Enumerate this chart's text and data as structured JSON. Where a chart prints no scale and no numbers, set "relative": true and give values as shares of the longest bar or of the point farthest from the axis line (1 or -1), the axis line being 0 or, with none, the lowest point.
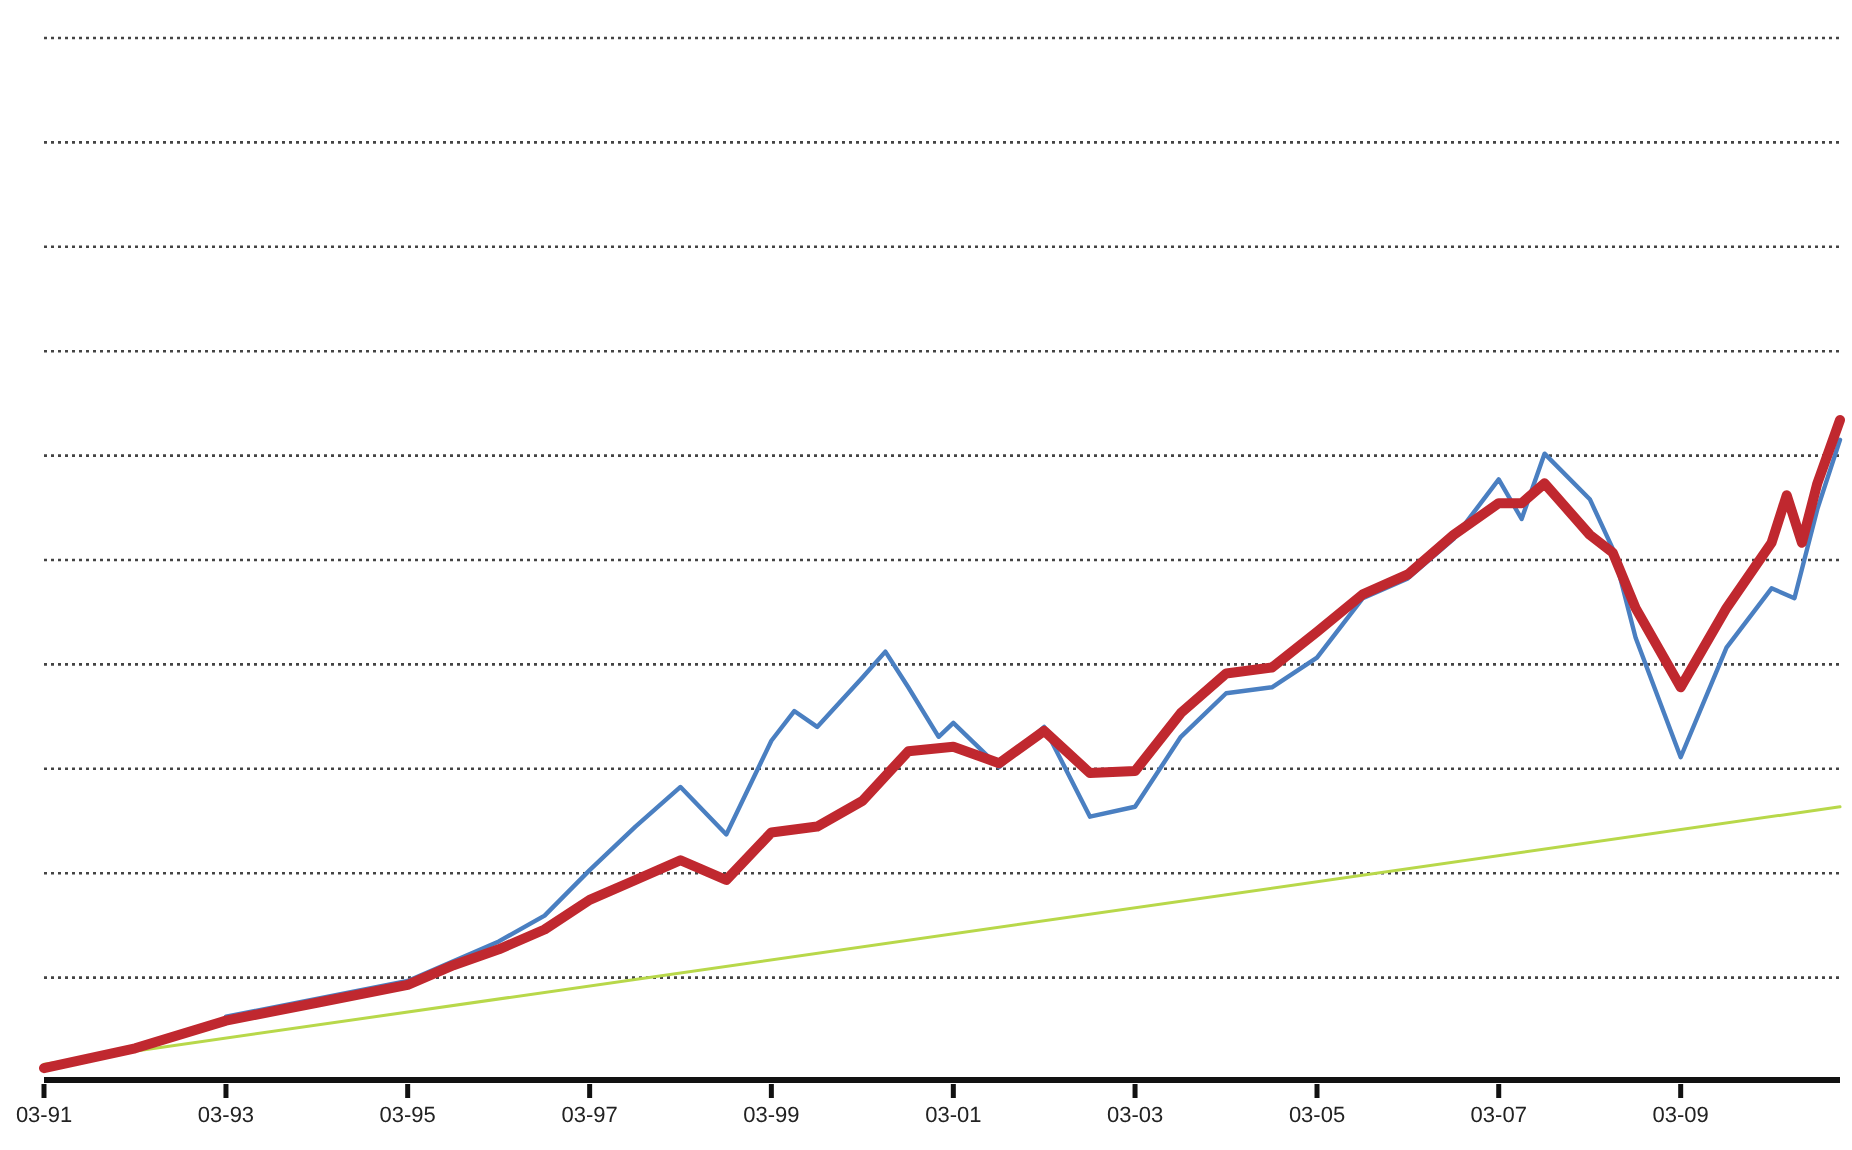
{
  "chart_data": {
    "type": "line",
    "relative": true,
    "grid": "y",
    "line_style": "solid",
    "xlim": [
      "1991-03",
      "2010-12"
    ],
    "xticks": [
      {
        "value": "1991-03",
        "label": "03-91"
      },
      {
        "value": "1993-03",
        "label": "03-93"
      },
      {
        "value": "1995-03",
        "label": "03-95"
      },
      {
        "value": "1997-03",
        "label": "03-97"
      },
      {
        "value": "1999-03",
        "label": "03-99"
      },
      {
        "value": "2001-03",
        "label": "03-01"
      },
      {
        "value": "2003-03",
        "label": "03-03"
      },
      {
        "value": "2005-03",
        "label": "03-05"
      },
      {
        "value": "2007-03",
        "label": "03-07"
      },
      {
        "value": "2009-03",
        "label": "03-09"
      }
    ],
    "series": [
      {
        "color": "#b8d84a",
        "x": [
          "1991-03",
          "2010-12"
        ],
        "values": [
          0.024,
          0.414
        ]
      },
      {
        "color": "#4a7fc1",
        "x": [
          "1993-03",
          "1995-03",
          "1996-03",
          "1996-09",
          "1997-03",
          "1997-09",
          "1998-03",
          "1998-09",
          "1999-03",
          "1999-06",
          "1999-09",
          "2000-03",
          "2000-06",
          "2000-09",
          "2001-01",
          "2001-03",
          "2001-09",
          "2002-03",
          "2002-09",
          "2003-03",
          "2003-09",
          "2004-03",
          "2004-09",
          "2005-03",
          "2005-09",
          "2006-03",
          "2006-09",
          "2007-03",
          "2007-06",
          "2007-09",
          "2008-03",
          "2008-06",
          "2008-09",
          "2009-03",
          "2009-09",
          "2010-03",
          "2010-06",
          "2010-09",
          "2010-12"
        ],
        "values": [
          0.096,
          0.15,
          0.21,
          0.249,
          0.318,
          0.384,
          0.444,
          0.372,
          0.514,
          0.559,
          0.535,
          0.61,
          0.649,
          0.595,
          0.52,
          0.541,
          0.474,
          0.535,
          0.399,
          0.414,
          0.52,
          0.586,
          0.595,
          0.64,
          0.73,
          0.76,
          0.82,
          0.91,
          0.85,
          0.949,
          0.88,
          0.805,
          0.67,
          0.489,
          0.655,
          0.745,
          0.73,
          0.865,
          0.97
        ]
      },
      {
        "color": "#c0282f",
        "x": [
          "1991-03",
          "1992-03",
          "1993-03",
          "1994-03",
          "1995-03",
          "1995-09",
          "1996-03",
          "1996-09",
          "1997-03",
          "1997-09",
          "1998-03",
          "1998-09",
          "1999-03",
          "1999-09",
          "2000-03",
          "2000-09",
          "2001-03",
          "2001-09",
          "2002-03",
          "2002-09",
          "2003-03",
          "2003-09",
          "2004-03",
          "2004-09",
          "2005-03",
          "2005-09",
          "2006-03",
          "2006-09",
          "2007-03",
          "2007-06",
          "2007-09",
          "2008-03",
          "2008-06",
          "2008-09",
          "2009-03",
          "2009-09",
          "2010-03",
          "2010-05",
          "2010-07",
          "2010-09",
          "2010-12"
        ],
        "values": [
          0.018,
          0.048,
          0.09,
          0.117,
          0.144,
          0.174,
          0.198,
          0.228,
          0.273,
          0.303,
          0.333,
          0.303,
          0.375,
          0.384,
          0.423,
          0.498,
          0.505,
          0.48,
          0.529,
          0.465,
          0.468,
          0.556,
          0.616,
          0.625,
          0.679,
          0.736,
          0.766,
          0.826,
          0.874,
          0.874,
          0.904,
          0.826,
          0.799,
          0.715,
          0.595,
          0.715,
          0.814,
          0.886,
          0.814,
          0.904,
          1
        ]
      }
    ]
  }
}
